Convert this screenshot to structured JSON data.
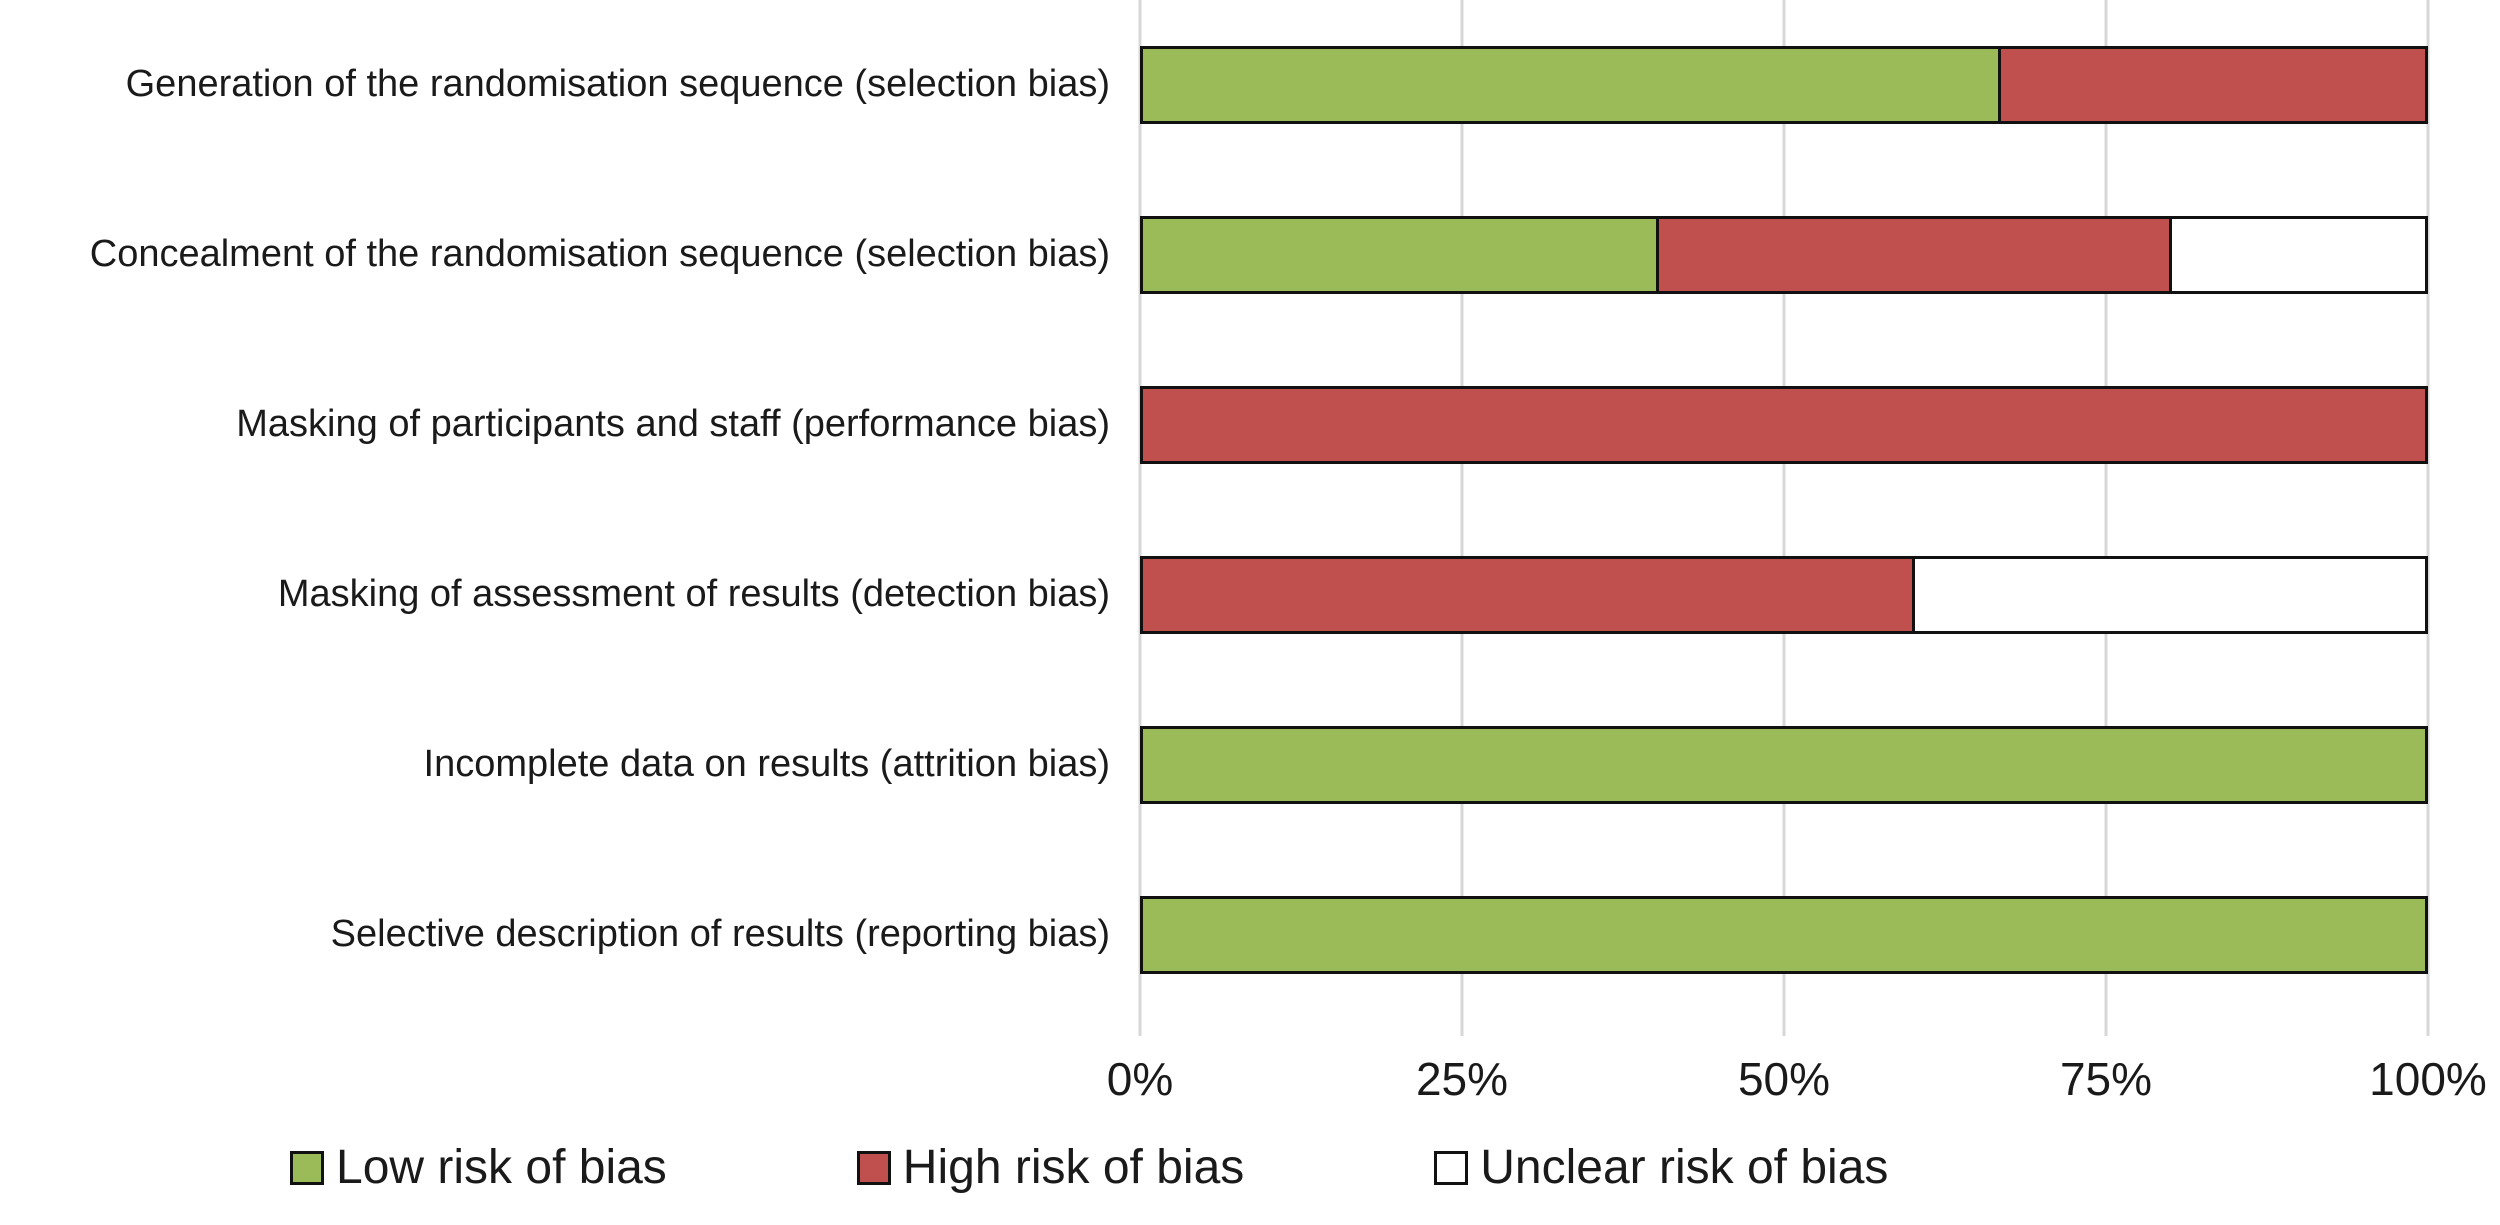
{
  "chart_data": {
    "type": "bar",
    "orientation": "horizontal",
    "stacked": true,
    "title": "",
    "xlabel": "",
    "ylabel": "",
    "xlim": [
      0,
      100
    ],
    "x_ticks": [
      "0%",
      "25%",
      "50%",
      "75%",
      "100%"
    ],
    "grid": "vertical",
    "legend_position": "bottom",
    "gridline_color": "#d7d7d7",
    "bar_border_color": "#111111",
    "categories": [
      "Generation of the randomisation sequence (selection bias)",
      "Concealment of the randomisation sequence (selection bias)",
      "Masking of participants and staff (performance bias)",
      "Masking of assessment of results (detection bias)",
      "Incomplete data on results (attrition bias)",
      "Selective description of results (reporting bias)"
    ],
    "series": [
      {
        "name": "Low risk of bias",
        "color": "#9bbb59",
        "values": [
          66.7,
          40,
          0,
          0,
          100,
          100
        ]
      },
      {
        "name": "High risk of bias",
        "color": "#c0504d",
        "values": [
          33.3,
          40,
          100,
          60,
          0,
          0
        ]
      },
      {
        "name": "Unclear risk of bias",
        "color": "#ffffff",
        "values": [
          0,
          20,
          0,
          40,
          0,
          0
        ]
      }
    ]
  }
}
